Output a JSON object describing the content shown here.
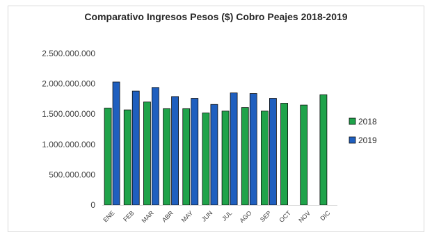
{
  "chart_data": {
    "type": "bar",
    "title": "Comparativo Ingresos Pesos ($) Cobro Peajes 2018-2019",
    "xlabel": "",
    "ylabel": "",
    "categories": [
      "ENE",
      "FEB",
      "MAR",
      "ABR",
      "MAY",
      "JUN",
      "JUL",
      "AGO",
      "SEP",
      "OCT",
      "NOV",
      "DIC"
    ],
    "ylim": [
      0,
      2500000000
    ],
    "yticks": [
      0,
      500000000,
      1000000000,
      1500000000,
      2000000000,
      2500000000
    ],
    "ytick_labels": [
      "0",
      "500.000.000",
      "1.000.000.000",
      "1.500.000.000",
      "2.000.000.000",
      "2.500.000.000"
    ],
    "series": [
      {
        "name": "2018",
        "color": "#1fa34a",
        "values": [
          1600000000,
          1570000000,
          1700000000,
          1590000000,
          1590000000,
          1520000000,
          1550000000,
          1610000000,
          1550000000,
          1680000000,
          1650000000,
          1820000000
        ]
      },
      {
        "name": "2019",
        "color": "#1f5fbf",
        "values": [
          2030000000,
          1880000000,
          1940000000,
          1790000000,
          1760000000,
          1660000000,
          1850000000,
          1840000000,
          1760000000,
          null,
          null,
          null
        ]
      }
    ],
    "legend_position": "right",
    "grid": false
  }
}
